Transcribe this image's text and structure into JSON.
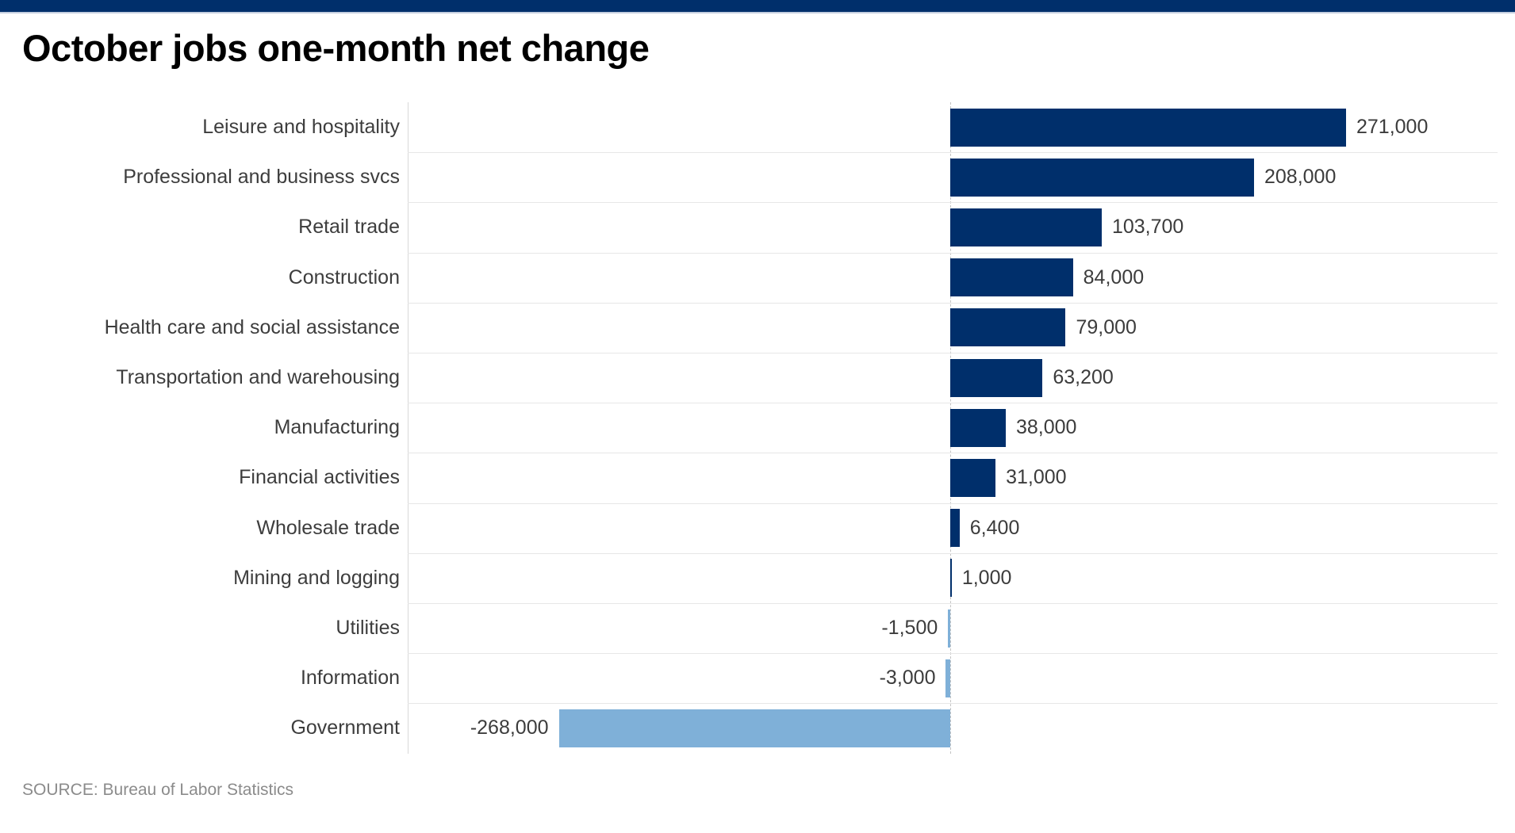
{
  "banner": {
    "color": "#002f6b",
    "underline_color": "#c4cedf"
  },
  "title": "October jobs one-month net change",
  "source": "SOURCE: Bureau of Labor Statistics",
  "chart_data": {
    "type": "bar",
    "orientation": "horizontal",
    "title": "October jobs one-month net change",
    "categories": [
      "Leisure and hospitality",
      "Professional and business svcs",
      "Retail trade",
      "Construction",
      "Health care and social assistance",
      "Transportation and warehousing",
      "Manufacturing",
      "Financial activities",
      "Wholesale trade",
      "Mining and logging",
      "Utilities",
      "Information",
      "Government"
    ],
    "values": [
      271000,
      208000,
      103700,
      84000,
      79000,
      63200,
      38000,
      31000,
      6400,
      1000,
      -1500,
      -3000,
      -268000
    ],
    "value_labels": [
      "271,000",
      "208,000",
      "103,700",
      "84,000",
      "79,000",
      "63,200",
      "38,000",
      "31,000",
      "6,400",
      "1,000",
      "-1,500",
      "-3,000",
      "-268,000"
    ],
    "positive_color": "#002f6b",
    "negative_color": "#7fb0d8",
    "axis_range": [
      -371000,
      375000
    ],
    "zero_line": "dashed",
    "grid": "row-separators-only",
    "legend": false,
    "xlabel": "",
    "ylabel": ""
  }
}
